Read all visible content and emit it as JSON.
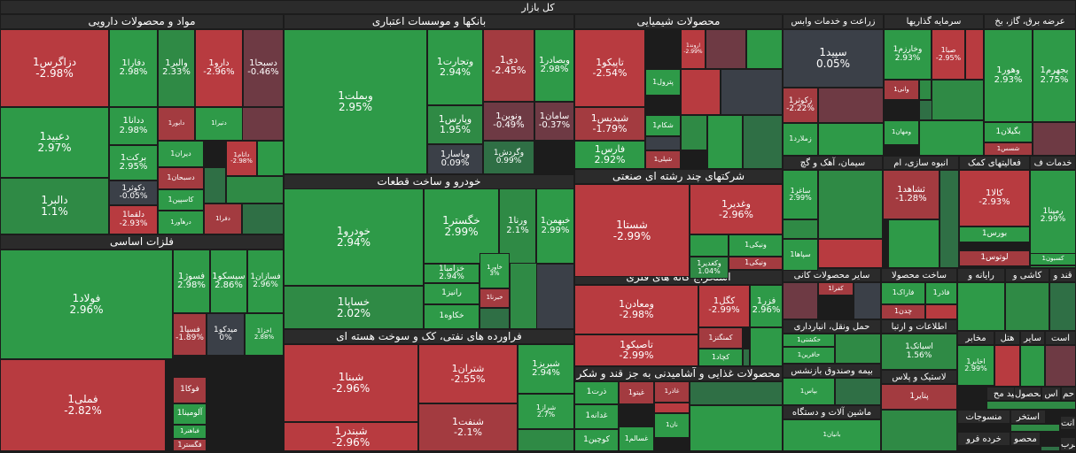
{
  "chart_data": {
    "type": "treemap",
    "title": "کل بازار",
    "colors": {
      "pos_strong": "#2e9a48",
      "pos_mid": "#2f8a45",
      "pos_weak": "#2f6f45",
      "neutral": "#3b4048",
      "neg_weak": "#6e3a44",
      "neg_mid": "#a33b40",
      "neg_strong": "#b83b40",
      "header_bg": "#2b2b2b"
    },
    "sectors": [
      {
        "name": "مواد و محصولات دارویی"
      },
      {
        "name": "بانکها و موسسات اعتباری"
      },
      {
        "name": "محصولات شیمیایی"
      },
      {
        "name": "زراعت و خدمات وابس"
      },
      {
        "name": "سرمایه گذاریها"
      },
      {
        "name": "عرضه برق، گاز، بخ"
      },
      {
        "name": "فلزات اساسی"
      },
      {
        "name": "خودرو و ساخت قطعات"
      },
      {
        "name": "شرکتهای چند رشته ای صنعتی"
      },
      {
        "name": "سیمان، آهک و گچ"
      },
      {
        "name": "انبوه سازی، ام"
      },
      {
        "name": "فعالیتهای کمک"
      },
      {
        "name": "خدمات ف"
      },
      {
        "name": "فراورده های نفتی، کک و سوخت هسته ای"
      },
      {
        "name": "استخراج کانه های فلزی"
      },
      {
        "name": "سایر محصولات کانی"
      },
      {
        "name": "ساخت محصولا"
      },
      {
        "name": "رایانه و"
      },
      {
        "name": "کاشی و"
      },
      {
        "name": "قند و"
      },
      {
        "name": "حمل ونقل، انبارداری"
      },
      {
        "name": "اطلاعات و ارتبا"
      },
      {
        "name": "سایر"
      },
      {
        "name": "هتل"
      },
      {
        "name": "مخابر"
      },
      {
        "name": "است"
      },
      {
        "name": "بیمه وصندوق بازنشس"
      },
      {
        "name": "لاستیک و پلاس"
      },
      {
        "name": "محصولات غذایی و آشامیدنی به جز قند و شکر"
      },
      {
        "name": "تولید مح"
      },
      {
        "name": "محصول"
      },
      {
        "name": "اس"
      },
      {
        "name": "حم"
      },
      {
        "name": "استخر"
      },
      {
        "name": "ماشین آلات و دستگاه"
      },
      {
        "name": "ماشین آلات و"
      },
      {
        "name": "منسوجات"
      },
      {
        "name": "خرده فرو"
      },
      {
        "name": "محصو"
      },
      {
        "name": "دب انت"
      },
      {
        "name": "سرب"
      }
    ],
    "tiles": [
      {
        "name": "دزاگرس1",
        "change": "-2.98%"
      },
      {
        "name": "دعبید1",
        "change": "2.97%"
      },
      {
        "name": "دالبر1",
        "change": "1.1%"
      },
      {
        "name": "دفارا1",
        "change": "2.98%"
      },
      {
        "name": "والبر1",
        "change": "2.33%"
      },
      {
        "name": "دارو1",
        "change": "-2.96%"
      },
      {
        "name": "دسبحا1",
        "change": "-0.46%"
      },
      {
        "name": "ددانا1",
        "change": "2.98%"
      },
      {
        "name": "برکت1",
        "change": "2.95%"
      },
      {
        "name": "دکوثر1",
        "change": "-0.05%"
      },
      {
        "name": "دلقما1",
        "change": "-2.93%"
      },
      {
        "name": "دیران1",
        "change": ""
      },
      {
        "name": "دسبحان1",
        "change": ""
      },
      {
        "name": "کاسپین1",
        "change": ""
      },
      {
        "name": "درهآور1",
        "change": ""
      },
      {
        "name": "دفرا1",
        "change": ""
      },
      {
        "name": "دتیرا1",
        "change": ""
      },
      {
        "name": "داتام1",
        "change": "-2.98%"
      },
      {
        "name": "دابور1",
        "change": ""
      },
      {
        "name": "وبملت1",
        "change": "2.95%"
      },
      {
        "name": "وتجارت1",
        "change": "2.94%"
      },
      {
        "name": "دی1",
        "change": "-2.45%"
      },
      {
        "name": "وبصادر1",
        "change": "2.98%"
      },
      {
        "name": "وپارس1",
        "change": "1.95%"
      },
      {
        "name": "ونوین1",
        "change": "-0.49%"
      },
      {
        "name": "سامان1",
        "change": "-0.37%"
      },
      {
        "name": "وپاسار1",
        "change": "0.09%"
      },
      {
        "name": "وگردش1",
        "change": "0.99%"
      },
      {
        "name": "تاپیکو1",
        "change": "-2.54%"
      },
      {
        "name": "شپدیس1",
        "change": "-1.79%"
      },
      {
        "name": "فارس1",
        "change": "2.92%"
      },
      {
        "name": "پترول1",
        "change": ""
      },
      {
        "name": "شکام1",
        "change": ""
      },
      {
        "name": "شپلی1",
        "change": ""
      },
      {
        "name": "اروند1",
        "change": "-2.99%"
      },
      {
        "name": "سپید1",
        "change": "0.05%"
      },
      {
        "name": "زکوثر1",
        "change": "-2.22%"
      },
      {
        "name": "زملارد1",
        "change": ""
      },
      {
        "name": "وخارزم1",
        "change": "2.93%"
      },
      {
        "name": "وانی1",
        "change": ""
      },
      {
        "name": "ومهان1",
        "change": ""
      },
      {
        "name": "صبا1",
        "change": "-2.95%"
      },
      {
        "name": "وهور1",
        "change": "2.93%"
      },
      {
        "name": "بجهرم1",
        "change": "2.75%"
      },
      {
        "name": "بگیلان1",
        "change": ""
      },
      {
        "name": "شسس1",
        "change": ""
      },
      {
        "name": "فولاد1",
        "change": "2.96%"
      },
      {
        "name": "فملی1",
        "change": "-2.82%"
      },
      {
        "name": "فسوژ1",
        "change": "2.98%"
      },
      {
        "name": "سیسکو1",
        "change": "2.86%"
      },
      {
        "name": "فسازان1",
        "change": "2.96%"
      },
      {
        "name": "فسپا1",
        "change": "-1.89%"
      },
      {
        "name": "میدکو1",
        "change": "0%"
      },
      {
        "name": "اخزا1",
        "change": "2.88%"
      },
      {
        "name": "فوکا1",
        "change": ""
      },
      {
        "name": "آلومینا1",
        "change": ""
      },
      {
        "name": "فباهنر1",
        "change": ""
      },
      {
        "name": "فگستر1",
        "change": ""
      },
      {
        "name": "خودرو1",
        "change": "2.94%"
      },
      {
        "name": "خساپا1",
        "change": "2.02%"
      },
      {
        "name": "خگستر1",
        "change": "2.99%"
      },
      {
        "name": "ورنا1",
        "change": "2.1%"
      },
      {
        "name": "خبهمن1",
        "change": "2.99%"
      },
      {
        "name": "خزامیا1",
        "change": "2.94%"
      },
      {
        "name": "خاور1",
        "change": "3%"
      },
      {
        "name": "رانیز1",
        "change": ""
      },
      {
        "name": "خبرنا1",
        "change": ""
      },
      {
        "name": "خکاوه1",
        "change": ""
      },
      {
        "name": "شستا1",
        "change": "-2.99%"
      },
      {
        "name": "وغدیر1",
        "change": "-2.96%"
      },
      {
        "name": "ونیکی1",
        "change": ""
      },
      {
        "name": "وکغدیر1",
        "change": "1.04%"
      },
      {
        "name": "ونیکی1",
        "change": ""
      },
      {
        "name": "ساغر1",
        "change": "2.99%"
      },
      {
        "name": "سپاها1",
        "change": ""
      },
      {
        "name": "ثشاهد1",
        "change": "-1.28%"
      },
      {
        "name": "کالا1",
        "change": "-2.93%"
      },
      {
        "name": "بورس1",
        "change": ""
      },
      {
        "name": "لوتوس1",
        "change": ""
      },
      {
        "name": "رمپنا1",
        "change": "2.99%"
      },
      {
        "name": "کسبون1",
        "change": ""
      },
      {
        "name": "شبنا1",
        "change": "-2.96%"
      },
      {
        "name": "شبندر1",
        "change": "-2.96%"
      },
      {
        "name": "شتران1",
        "change": "-2.55%"
      },
      {
        "name": "شنفت1",
        "change": "-2.1%"
      },
      {
        "name": "شبریز1",
        "change": "2.94%"
      },
      {
        "name": "شراز1",
        "change": "2.7%"
      },
      {
        "name": "ومعادن1",
        "change": "-2.98%"
      },
      {
        "name": "کگل1",
        "change": "-2.99%"
      },
      {
        "name": "فزر1",
        "change": "2.96%"
      },
      {
        "name": "کمنگنز1",
        "change": ""
      },
      {
        "name": "تاصیکو1",
        "change": "-2.99%"
      },
      {
        "name": "کچاد1",
        "change": ""
      },
      {
        "name": "کفرا1",
        "change": ""
      },
      {
        "name": "فاراک1",
        "change": ""
      },
      {
        "name": "فاذر1",
        "change": ""
      },
      {
        "name": "چدن1",
        "change": ""
      },
      {
        "name": "حکشتی1",
        "change": ""
      },
      {
        "name": "حافرین1",
        "change": ""
      },
      {
        "name": "اسیاتک1",
        "change": "1.56%"
      },
      {
        "name": "اخابر1",
        "change": "2.99%"
      },
      {
        "name": "بپاس1",
        "change": ""
      },
      {
        "name": "پتایر1",
        "change": ""
      },
      {
        "name": "ذرت1",
        "change": ""
      },
      {
        "name": "غدانه1",
        "change": ""
      },
      {
        "name": "غیتو1",
        "change": ""
      },
      {
        "name": "غسالم1",
        "change": ""
      },
      {
        "name": "کوچین1",
        "change": ""
      },
      {
        "name": "غاذر1",
        "change": ""
      },
      {
        "name": "نان1",
        "change": ""
      },
      {
        "name": "بانیان1",
        "change": ""
      }
    ]
  }
}
